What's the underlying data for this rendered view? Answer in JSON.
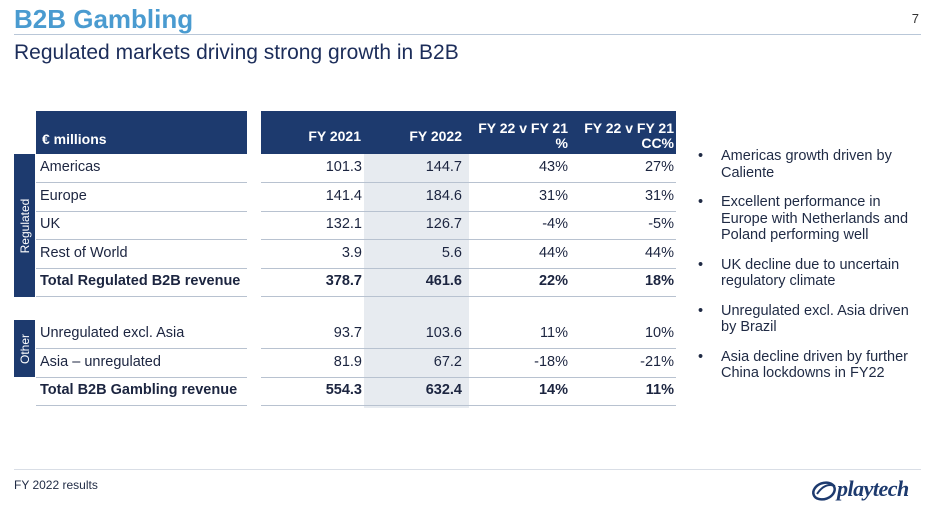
{
  "page": {
    "title": "B2B Gambling",
    "page_number": "7",
    "subtitle": "Regulated markets driving strong growth in B2B",
    "footer": "FY 2022 results",
    "logo_text": "playtech"
  },
  "table": {
    "header_label": "€ millions",
    "columns": [
      "FY 2021",
      "FY 2022",
      "FY 22 v FY 21 %",
      "FY 22 v FY 21 CC%"
    ],
    "column_lines": [
      [
        "FY 2021"
      ],
      [
        "FY 2022"
      ],
      [
        "FY 22 v FY 21",
        "%"
      ],
      [
        "FY 22 v FY 21",
        "CC%"
      ]
    ],
    "groups": {
      "regulated_label": "Regulated",
      "other_label": "Other"
    },
    "rows": [
      {
        "label": "Americas",
        "fy2021": "101.3",
        "fy2022": "144.7",
        "pct": "43%",
        "cc": "27%",
        "total": false
      },
      {
        "label": "Europe",
        "fy2021": "141.4",
        "fy2022": "184.6",
        "pct": "31%",
        "cc": "31%",
        "total": false
      },
      {
        "label": "UK",
        "fy2021": "132.1",
        "fy2022": "126.7",
        "pct": "-4%",
        "cc": "-5%",
        "total": false
      },
      {
        "label": "Rest of World",
        "fy2021": "3.9",
        "fy2022": "5.6",
        "pct": "44%",
        "cc": "44%",
        "total": false
      },
      {
        "label": "Total Regulated B2B revenue",
        "fy2021": "378.7",
        "fy2022": "461.6",
        "pct": "22%",
        "cc": "18%",
        "total": true
      },
      {
        "label": "Unregulated excl. Asia",
        "fy2021": "93.7",
        "fy2022": "103.6",
        "pct": "11%",
        "cc": "10%",
        "total": false
      },
      {
        "label": "Asia – unregulated",
        "fy2021": "81.9",
        "fy2022": "67.2",
        "pct": "-18%",
        "cc": "-21%",
        "total": false
      },
      {
        "label": "Total B2B Gambling revenue",
        "fy2021": "554.3",
        "fy2022": "632.4",
        "pct": "14%",
        "cc": "11%",
        "total": true
      }
    ]
  },
  "bullets": [
    "Americas growth driven by Caliente",
    "Excellent performance in Europe with Netherlands and Poland performing well",
    "UK decline due to uncertain regulatory climate",
    "Unregulated excl. Asia driven by Brazil",
    "Asia decline driven by further China lockdowns in FY22"
  ],
  "colors": {
    "title": "#4a9bd0",
    "header_bg": "#1d3a6e",
    "highlight_column": "#e7ebf0"
  }
}
